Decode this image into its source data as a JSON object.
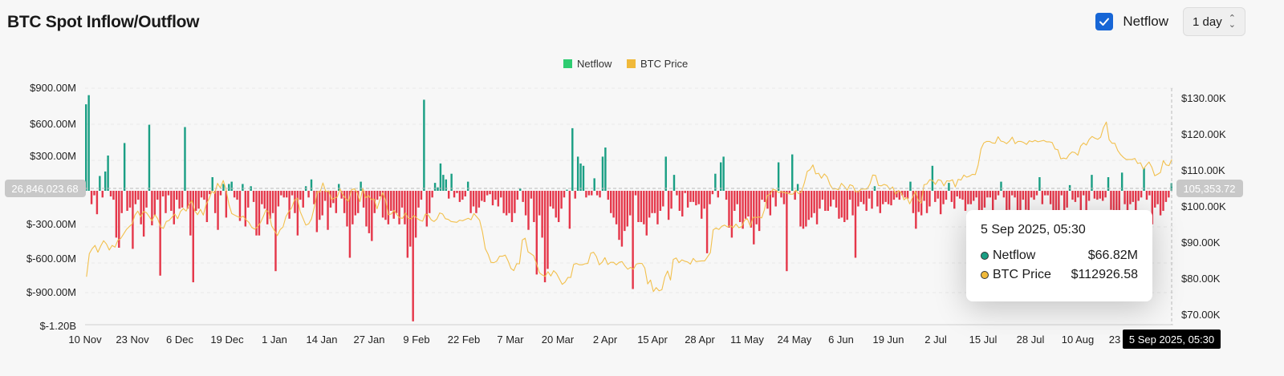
{
  "header": {
    "title": "BTC Spot Inflow/Outflow",
    "netflow_toggle_label": "Netflow",
    "netflow_checked": true,
    "interval_label": "1 day"
  },
  "colors": {
    "inflow": "#1a9f84",
    "outflow": "#e5374a",
    "price": "#f2c04d",
    "legend_netflow": "#2ecc71",
    "legend_price": "#f0b93a"
  },
  "tooltip": {
    "date": "5 Sep 2025, 05:30",
    "rows": [
      {
        "label": "Netflow",
        "value": "$66.82M"
      },
      {
        "label": "BTC Price",
        "value": "$112926.58"
      }
    ]
  },
  "chart_data": {
    "type": "bar",
    "legend": [
      "Netflow",
      "BTC Price"
    ],
    "legend_position": "top-center",
    "grid": true,
    "y_left": {
      "ticks": [
        "$900.00M",
        "$600.00M",
        "$300.00M",
        "$-300.00M",
        "$-600.00M",
        "$-900.00M",
        "$-1.20B"
      ],
      "tick_values": [
        900,
        600,
        300,
        -300,
        -600,
        -900,
        -1200
      ],
      "range_millions": [
        -1200,
        900
      ]
    },
    "y_right": {
      "ticks": [
        "$130.00K",
        "$120.00K",
        "$110.00K",
        "$100.00K",
        "$90.00K",
        "$80.00K",
        "$70.00K"
      ],
      "tick_values": [
        130,
        120,
        110,
        100,
        90,
        80,
        70
      ],
      "range_thousands": [
        70,
        130
      ]
    },
    "x_ticks": [
      "10 Nov",
      "23 Nov",
      "6 Dec",
      "19 Dec",
      "1 Jan",
      "14 Jan",
      "27 Jan",
      "9 Feb",
      "22 Feb",
      "7 Mar",
      "20 Mar",
      "2 Apr",
      "15 Apr",
      "28 Apr",
      "11 May",
      "24 May",
      "6 Jun",
      "19 Jun",
      "2 Jul",
      "15 Jul",
      "28 Jul",
      "10 Aug",
      "23"
    ],
    "crosshair_left_label": "26,846,023.68",
    "crosshair_right_label": "105,353.72",
    "crosshair_x_label": "5 Sep 2025, 05:30",
    "series": [
      {
        "name": "Netflow",
        "unit": "USD millions",
        "daily_values": [
          760,
          840,
          -120,
          -40,
          -210,
          130,
          -60,
          170,
          310,
          -50,
          -80,
          -420,
          -510,
          -200,
          420,
          -180,
          -150,
          -520,
          -120,
          -80,
          -300,
          -410,
          -150,
          580,
          -310,
          -220,
          -80,
          -760,
          -50,
          -200,
          -40,
          -180,
          -300,
          -80,
          -160,
          -150,
          560,
          -160,
          -400,
          -820,
          -180,
          -160,
          -60,
          -80,
          -280,
          -30,
          120,
          -200,
          -350,
          -40,
          60,
          -240,
          60,
          80,
          -60,
          -80,
          -270,
          60,
          -320,
          -150,
          40,
          -100,
          -400,
          -400,
          -120,
          -160,
          -300,
          -250,
          -200,
          -720,
          -140,
          -40,
          -60,
          -60,
          -250,
          -40,
          -200,
          -400,
          -80,
          -150,
          40,
          -60,
          100,
          -120,
          -370,
          -260,
          -220,
          -90,
          -350,
          -150,
          -110,
          -200,
          60,
          -70,
          -200,
          -320,
          -600,
          -300,
          -220,
          -200,
          80,
          -150,
          -320,
          -380,
          -450,
          -200,
          -80,
          -50,
          -240,
          -260,
          -300,
          -180,
          -250,
          -200,
          -300,
          -150,
          -300,
          -600,
          -500,
          -1170,
          -420,
          -150,
          -80,
          800,
          -320,
          -200,
          -60,
          70,
          30,
          240,
          140,
          100,
          -70,
          150,
          -60,
          -20,
          -100,
          -80,
          -50,
          80,
          -200,
          -140,
          -200,
          -150,
          -90,
          -100,
          -40,
          -30,
          -130,
          -80,
          -140,
          -60,
          -200,
          -220,
          -200,
          -280,
          -200,
          -80,
          20,
          -100,
          -220,
          -350,
          -70,
          -280,
          -750,
          -220,
          -420,
          -820,
          -700,
          -140,
          -160,
          -240,
          -280,
          -160,
          -60,
          10,
          -340,
          550,
          -70,
          300,
          240,
          220,
          -60,
          -40,
          -40,
          110,
          -40,
          -60,
          300,
          380,
          -80,
          -200,
          -240,
          -300,
          -440,
          -500,
          -360,
          -320,
          -220,
          -880,
          -40,
          -280,
          -280,
          -300,
          -400,
          -240,
          -200,
          -200,
          -300,
          -180,
          -140,
          300,
          -260,
          -160,
          140,
          -40,
          -180,
          -230,
          -20,
          -150,
          -100,
          -100,
          -130,
          -120,
          -250,
          -160,
          -560,
          -120,
          -30,
          150,
          -60,
          250,
          300,
          -80,
          -330,
          -420,
          -180,
          -120,
          -280,
          -340,
          -250,
          -230,
          -330,
          -480,
          -300,
          -360,
          -80,
          -100,
          -160,
          -220,
          -60,
          -140,
          250,
          -60,
          -120,
          -720,
          -20,
          320,
          -80,
          60,
          -320,
          -340,
          -320,
          -260,
          -240,
          -200,
          -300,
          -160,
          -80,
          -180,
          -180,
          -140,
          -80,
          -150,
          -250,
          -240,
          -280,
          -260,
          -80,
          -220,
          -600,
          -140,
          -100,
          -120,
          -180,
          -70,
          -160,
          40,
          -140,
          -200,
          -120,
          -100,
          -120,
          -130,
          -80,
          -60,
          -80,
          -40,
          -60,
          -70,
          80,
          -200,
          -340,
          -190,
          -220,
          -90,
          -200,
          -140,
          220,
          -100,
          -70,
          -210,
          -120,
          -80,
          70,
          -100,
          -160,
          -50,
          -70,
          -80,
          -180,
          -120,
          -120,
          -90,
          -60,
          -220,
          -180,
          -150,
          -60,
          -60,
          -260,
          -80,
          -40,
          80,
          -60,
          -200,
          -170,
          -40,
          -60,
          -200,
          -250,
          -80,
          -170,
          -200,
          -60,
          -80,
          -40,
          120,
          -120,
          -40,
          -40,
          -120,
          -180,
          -280,
          -240,
          -40,
          -180,
          -150,
          50,
          -80,
          -100,
          -60,
          -200,
          -40,
          -200,
          -90,
          140,
          -70,
          -80,
          -70,
          -90,
          -60,
          120,
          -170,
          -220,
          -260,
          -280,
          160,
          -120,
          -240,
          -120,
          -100,
          -240,
          -90,
          -60,
          200,
          -80,
          -40,
          -300,
          -150,
          -120,
          -220,
          -180,
          -100,
          -60,
          67
        ]
      },
      {
        "name": "BTC Price",
        "unit": "USD thousands",
        "daily_values": [
          80.4,
          86.8,
          88.2,
          89.1,
          87.2,
          88.9,
          90.4,
          89.5,
          87.8,
          89.1,
          88.6,
          90.5,
          91.0,
          92.2,
          93.5,
          94.3,
          95.0,
          97.5,
          98.6,
          97.0,
          98.5,
          98.2,
          97.1,
          95.9,
          97.6,
          96.5,
          94.2,
          93.8,
          95.7,
          96.0,
          96.9,
          97.8,
          96.5,
          98.5,
          99.3,
          98.6,
          100.4,
          101.5,
          98.7,
          97.6,
          99.1,
          97.5,
          100.5,
          101.9,
          104.1,
          103.5,
          106.3,
          105.0,
          107.1,
          104.5,
          100.4,
          97.9,
          97.5,
          97.1,
          96.8,
          97.2,
          96.2,
          95.5,
          94.1,
          93.6,
          94.2,
          95.3,
          97.0,
          98.9,
          98.2,
          94.5,
          93.2,
          91.8,
          93.5,
          94.2,
          97.1,
          98.4,
          99.5,
          101.6,
          102.2,
          98.5,
          96.6,
          94.7,
          95.1,
          96.5,
          99.8,
          104.0,
          103.9,
          106.4,
          104.0,
          104.2,
          101.8,
          102.2,
          102.5,
          104.7,
          103.1,
          102.1,
          101.3,
          104.5,
          104.8,
          103.8,
          101.2,
          105.0,
          102.3,
          102.9,
          101.8,
          101.9,
          99.2,
          101.7,
          103.7,
          101.6,
          97.6,
          97.8,
          98.8,
          97.6,
          96.7,
          96.6,
          98.1,
          96.6,
          96.5,
          97.4,
          96.6,
          96.1,
          95.8,
          97.8,
          97.5,
          96.2,
          95.7,
          96.4,
          98.1,
          97.8,
          96.5,
          96.3,
          95.7,
          95.6,
          95.5,
          96.1,
          95.9,
          96.3,
          96.6,
          96.2,
          97.9,
          97.0,
          96.1,
          92.8,
          88.2,
          86.6,
          84.4,
          84.3,
          84.7,
          86.1,
          86.1,
          86.4,
          84.8,
          82.7,
          82.1,
          84.0,
          84.0,
          90.6,
          91.1,
          87.3,
          86.8,
          86.2,
          84.0,
          81.5,
          80.9,
          80.5,
          81.8,
          80.6,
          82.1,
          81.3,
          79.8,
          78.3,
          78.9,
          80.2,
          80.2,
          83.8,
          84.1,
          83.7,
          83.7,
          84.0,
          84.1,
          86.9,
          87.2,
          86.0,
          83.7,
          84.4,
          85.7,
          83.8,
          84.4,
          84.4,
          83.7,
          84.4,
          84.6,
          83.4,
          82.5,
          83.0,
          82.5,
          83.9,
          84.1,
          84.1,
          82.8,
          78.4,
          79.5,
          76.3,
          77.4,
          76.5,
          76.8,
          80.3,
          82.0,
          79.5,
          85.2,
          85.6,
          84.3,
          85.1,
          84.7,
          84.5,
          83.9,
          85.5,
          84.6,
          84.7,
          84.8,
          84.8,
          85.9,
          87.1,
          93.4,
          93.9,
          93.5,
          94.4,
          94.7,
          94.2,
          94.6,
          94.0,
          95.0,
          94.0,
          94.3,
          96.1,
          96.5,
          94.4,
          96.9,
          96.8,
          97.0,
          96.7,
          99.0,
          102.9,
          103.3,
          104.7,
          104.4,
          103.7,
          104.0,
          103.7,
          103.6,
          103.3,
          103.3,
          104.4,
          103.4,
          104.0,
          106.4,
          109.6,
          110.1,
          111.4,
          108.9,
          109.1,
          107.7,
          108.9,
          108.1,
          105.9,
          104.7,
          104.8,
          104.5,
          106.3,
          105.5,
          104.4,
          105.9,
          105.6,
          103.9,
          104.0,
          104.7,
          104.7,
          104.7,
          106.1,
          108.6,
          108.5,
          105.7,
          105.6,
          106.0,
          105.7,
          104.6,
          105.3,
          103.3,
          104.3,
          103.7,
          101.7,
          102.4,
          100.6,
          102.4,
          104.1,
          101.6,
          100.8,
          105.9,
          106.1,
          107.3,
          107.1,
          106.0,
          107.3,
          107.1,
          105.6,
          107.0,
          106.9,
          107.3,
          105.3,
          107.4,
          107.2,
          108.6,
          108.0,
          108.3,
          108.8,
          108.7,
          111.3,
          115.8,
          117.5,
          117.9,
          117.9,
          117.5,
          117.4,
          119.2,
          118.0,
          117.8,
          117.3,
          118.0,
          119.1,
          117.3,
          117.9,
          117.9,
          117.6,
          117.1,
          118.1,
          117.8,
          118.2,
          117.8,
          118.0,
          118.2,
          117.8,
          117.8,
          117.6,
          115.8,
          115.6,
          113.1,
          113.3,
          113.1,
          114.3,
          115.0,
          114.8,
          114.1,
          116.6,
          117.5,
          116.9,
          118.5,
          119.3,
          118.8,
          118.5,
          119.1,
          121.7,
          123.3,
          118.4,
          117.4,
          117.4,
          115.4,
          114.3,
          113.5,
          112.9,
          112.9,
          112.9,
          113.2,
          111.8,
          112.0,
          110.2,
          111.3,
          112.2,
          110.7,
          108.4,
          108.8,
          109.3,
          112.6,
          111.4,
          111.2,
          112.9
        ]
      }
    ]
  }
}
